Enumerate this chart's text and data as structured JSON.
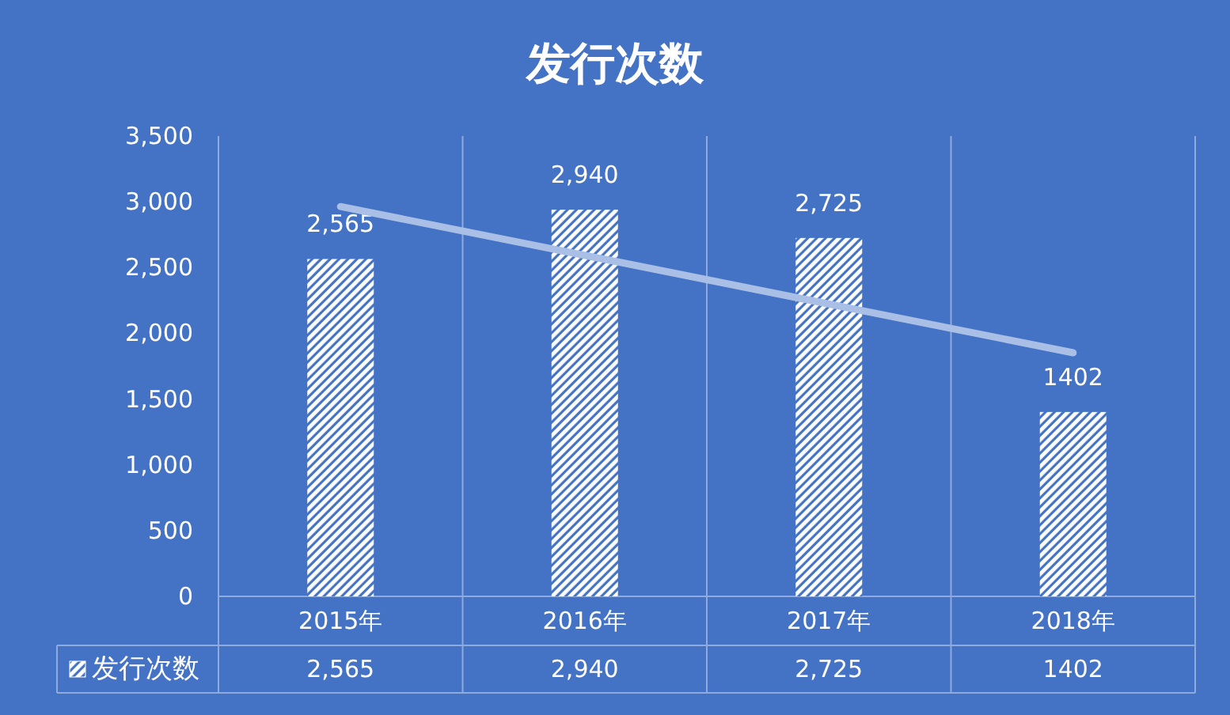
{
  "chart_data": {
    "type": "bar",
    "title": "发行次数",
    "categories": [
      "2015年",
      "2016年",
      "2017年",
      "2018年"
    ],
    "series": [
      {
        "name": "发行次数",
        "color": "#ffffff",
        "values": [
          2565,
          2940,
          2725,
          1402
        ],
        "value_labels": [
          "2,565",
          "2,940",
          "2,725",
          "1402"
        ]
      },
      {
        "type": "line",
        "color": "#a9bfe6",
        "values": [
          2964,
          2593,
          2223,
          1852
        ]
      }
    ],
    "ylim": [
      0,
      3500
    ],
    "yticks": [
      0,
      500,
      {
        "value": 1000,
        "label": "1,000"
      },
      {
        "value": 1500,
        "label": "1,500"
      },
      {
        "value": 2000,
        "label": "2,000"
      },
      {
        "value": 2500,
        "label": "2,500"
      },
      {
        "value": 3000,
        "label": "3,000"
      },
      {
        "value": 3500,
        "label": "3,500"
      }
    ],
    "grid": "x",
    "legend": "bottom"
  }
}
